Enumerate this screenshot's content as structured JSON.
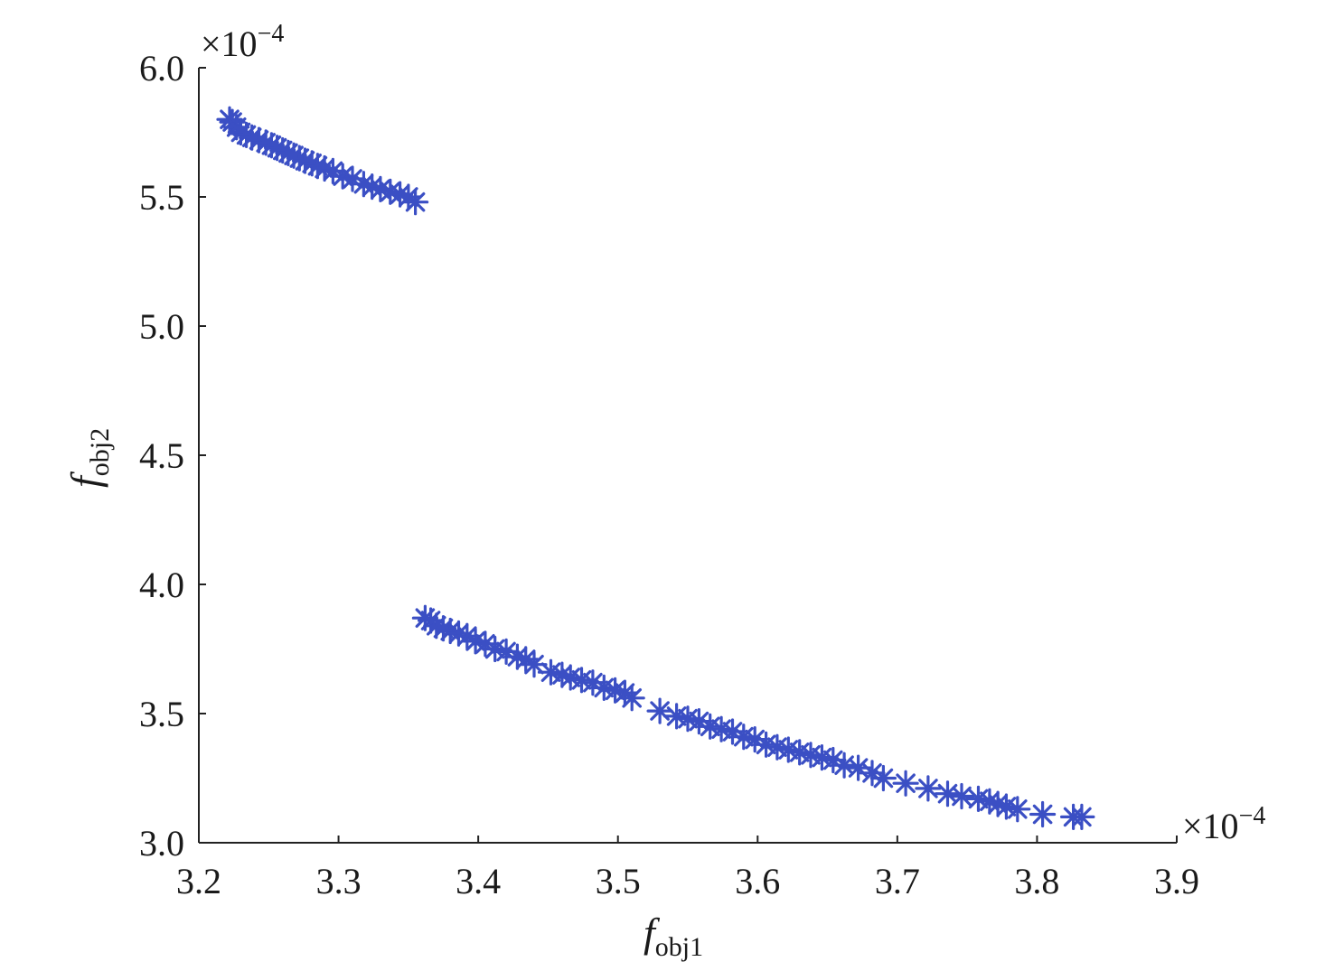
{
  "chart_data": {
    "type": "scatter",
    "xlabel": {
      "main": "f",
      "sub": "obj1"
    },
    "ylabel": {
      "main": "f",
      "sub": "obj2"
    },
    "x_multiplier": "×10",
    "x_exponent": "−4",
    "y_multiplier": "×10",
    "y_exponent": "−4",
    "xlim": [
      3.2,
      3.9
    ],
    "ylim": [
      3.0,
      6.0
    ],
    "x_ticks": [
      "3.2",
      "3.3",
      "3.4",
      "3.5",
      "3.6",
      "3.7",
      "3.8",
      "3.9"
    ],
    "y_ticks": [
      "3.0",
      "3.5",
      "4.0",
      "4.5",
      "5.0",
      "5.5",
      "6.0"
    ],
    "marker": "asterisk",
    "marker_color": "#3b4fc4",
    "grid": false,
    "series": [
      {
        "x": [
          3.222,
          3.224,
          3.227,
          3.23,
          3.234,
          3.238,
          3.243,
          3.248,
          3.252,
          3.256,
          3.26,
          3.264,
          3.268,
          3.272,
          3.276,
          3.281,
          3.285,
          3.29,
          3.296,
          3.303,
          3.31,
          3.318,
          3.324,
          3.33,
          3.337,
          3.344,
          3.35,
          3.355
        ],
        "y": [
          5.8,
          5.79,
          5.77,
          5.75,
          5.74,
          5.73,
          5.72,
          5.71,
          5.7,
          5.69,
          5.68,
          5.67,
          5.66,
          5.65,
          5.64,
          5.63,
          5.62,
          5.61,
          5.6,
          5.58,
          5.57,
          5.55,
          5.54,
          5.53,
          5.52,
          5.51,
          5.5,
          5.48
        ]
      },
      {
        "x": [
          3.362,
          3.366,
          3.37,
          3.375,
          3.38,
          3.386,
          3.392,
          3.398,
          3.405,
          3.412,
          3.42,
          3.428,
          3.434,
          3.44,
          3.452,
          3.46,
          3.466,
          3.474,
          3.482,
          3.49,
          3.498,
          3.505,
          3.51,
          3.53,
          3.542,
          3.55,
          3.558,
          3.566,
          3.574,
          3.582,
          3.59,
          3.598,
          3.606,
          3.614,
          3.622,
          3.63,
          3.638,
          3.646,
          3.654,
          3.662,
          3.672,
          3.682,
          3.69,
          3.706,
          3.722,
          3.736,
          3.746,
          3.758,
          3.766,
          3.772,
          3.778,
          3.786,
          3.804,
          3.826,
          3.832
        ],
        "y": [
          3.87,
          3.86,
          3.84,
          3.83,
          3.82,
          3.81,
          3.8,
          3.78,
          3.77,
          3.75,
          3.74,
          3.72,
          3.71,
          3.69,
          3.66,
          3.65,
          3.64,
          3.63,
          3.62,
          3.6,
          3.59,
          3.58,
          3.56,
          3.51,
          3.49,
          3.48,
          3.47,
          3.45,
          3.44,
          3.43,
          3.41,
          3.4,
          3.38,
          3.37,
          3.36,
          3.35,
          3.34,
          3.33,
          3.32,
          3.3,
          3.29,
          3.27,
          3.25,
          3.23,
          3.21,
          3.19,
          3.18,
          3.17,
          3.16,
          3.15,
          3.14,
          3.13,
          3.11,
          3.1,
          3.1
        ]
      }
    ]
  }
}
